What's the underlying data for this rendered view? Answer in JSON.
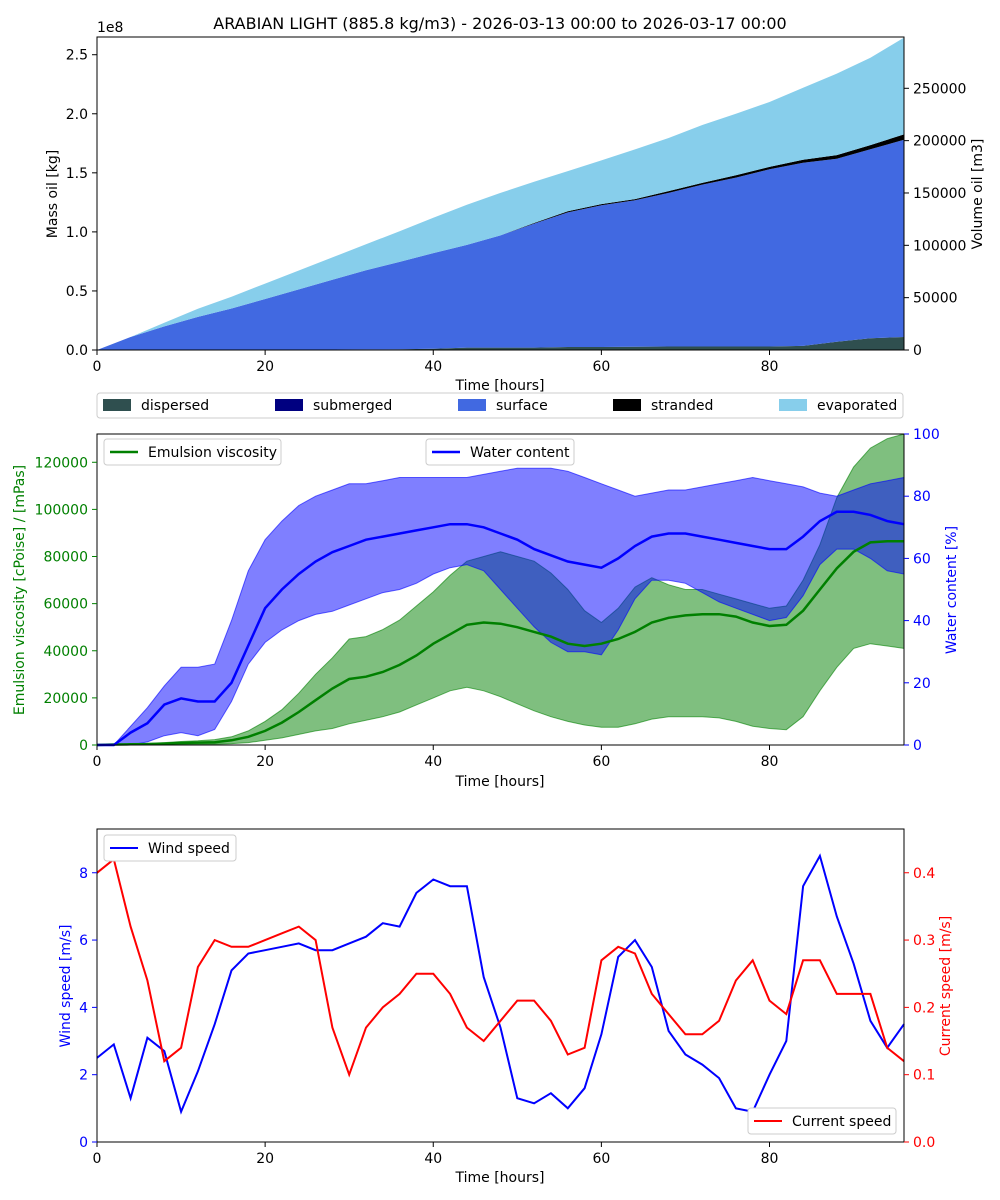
{
  "colors": {
    "dispersed": "#2f4f4f",
    "submerged": "#000080",
    "surface": "#4169e1",
    "stranded": "#000000",
    "evaporated": "#87ceeb",
    "emulsion": "#008000",
    "water": "#0000ff",
    "wind": "#0000ff",
    "current": "#ff0000"
  },
  "chart_data": [
    {
      "type": "area",
      "title": "ARABIAN LIGHT (885.8 kg/m3) - 2026-03-13 00:00 to 2026-03-17 00:00",
      "xlabel": "Time  [hours]",
      "ylabel": "Mass oil  [kg]",
      "y2label": "Volume oil [m3]",
      "y_multiplier": "1e8",
      "xlim": [
        0,
        96
      ],
      "ylim": [
        0,
        2.65
      ],
      "y2lim": [
        0,
        299000
      ],
      "x_ticks": [
        "0",
        "20",
        "40",
        "60",
        "80"
      ],
      "y_ticks": [
        "0.0",
        "0.5",
        "1.0",
        "1.5",
        "2.0",
        "2.5"
      ],
      "y2_ticks": [
        "0",
        "50000",
        "100000",
        "150000",
        "200000",
        "250000"
      ],
      "legend": [
        "dispersed",
        "submerged",
        "surface",
        "stranded",
        "evaporated"
      ],
      "x": [
        0,
        4,
        8,
        12,
        16,
        20,
        24,
        28,
        32,
        36,
        40,
        44,
        48,
        52,
        56,
        60,
        64,
        68,
        72,
        76,
        80,
        84,
        88,
        92,
        96
      ],
      "series": [
        {
          "name": "dispersed",
          "values": [
            0,
            0,
            0,
            0,
            0.001,
            0.002,
            0.003,
            0.004,
            0.005,
            0.006,
            0.01,
            0.02,
            0.02,
            0.02,
            0.025,
            0.025,
            0.028,
            0.03,
            0.03,
            0.03,
            0.03,
            0.035,
            0.07,
            0.1,
            0.11
          ]
        },
        {
          "name": "submerged",
          "values": [
            0,
            0,
            0,
            0,
            0,
            0,
            0,
            0,
            0,
            0,
            0,
            0,
            0,
            0,
            0,
            0,
            0,
            0,
            0,
            0,
            0,
            0,
            0,
            0,
            0
          ]
        },
        {
          "name": "surface",
          "values": [
            0,
            0.11,
            0.2,
            0.28,
            0.35,
            0.43,
            0.51,
            0.59,
            0.67,
            0.74,
            0.81,
            0.87,
            0.95,
            1.05,
            1.14,
            1.2,
            1.24,
            1.3,
            1.37,
            1.43,
            1.5,
            1.55,
            1.55,
            1.6,
            1.67
          ]
        },
        {
          "name": "stranded",
          "values": [
            0,
            0,
            0,
            0,
            0,
            0,
            0,
            0,
            0,
            0,
            0,
            0,
            0,
            0.005,
            0.01,
            0.01,
            0.01,
            0.015,
            0.015,
            0.02,
            0.02,
            0.025,
            0.03,
            0.035,
            0.045
          ]
        },
        {
          "name": "evaporated",
          "values": [
            0,
            0.0,
            0.03,
            0.07,
            0.1,
            0.13,
            0.16,
            0.19,
            0.22,
            0.26,
            0.3,
            0.34,
            0.36,
            0.35,
            0.34,
            0.37,
            0.42,
            0.45,
            0.49,
            0.52,
            0.55,
            0.61,
            0.69,
            0.74,
            0.82
          ]
        }
      ]
    },
    {
      "type": "line",
      "xlabel": "Time [hours]",
      "ylabel": "Emulsion viscosity  [cPoise] / [mPas]",
      "y2label": "Water content  [%]",
      "xlim": [
        0,
        96
      ],
      "ylim": [
        0,
        132000
      ],
      "y2lim": [
        0,
        100
      ],
      "x_ticks": [
        "0",
        "20",
        "40",
        "60",
        "80"
      ],
      "y_ticks": [
        "0",
        "20000",
        "40000",
        "60000",
        "80000",
        "100000",
        "120000"
      ],
      "y2_ticks": [
        "0",
        "20",
        "40",
        "60",
        "80",
        "100"
      ],
      "x": [
        0,
        2,
        4,
        6,
        8,
        10,
        12,
        14,
        16,
        18,
        20,
        22,
        24,
        26,
        28,
        30,
        32,
        34,
        36,
        38,
        40,
        42,
        44,
        46,
        48,
        50,
        52,
        54,
        56,
        58,
        60,
        62,
        64,
        66,
        68,
        70,
        72,
        74,
        76,
        78,
        80,
        82,
        84,
        86,
        88,
        90,
        92,
        94,
        96
      ],
      "series": [
        {
          "name": "Emulsion viscosity",
          "axis": "left",
          "values": [
            0,
            200,
            300,
            400,
            600,
            900,
            1000,
            1200,
            2000,
            3500,
            6000,
            9500,
            14000,
            19000,
            24000,
            28000,
            29000,
            31000,
            34000,
            38000,
            43000,
            47000,
            51000,
            52000,
            51500,
            50000,
            48000,
            46000,
            43000,
            42000,
            43000,
            45000,
            48000,
            52000,
            54000,
            55000,
            55500,
            55500,
            54500,
            52000,
            50500,
            51000,
            57000,
            66000,
            75000,
            82000,
            86000,
            86500,
            86500
          ],
          "lower": [
            0,
            0,
            0,
            0,
            100,
            200,
            300,
            400,
            600,
            1000,
            2000,
            3000,
            4500,
            6000,
            7000,
            9000,
            10500,
            12000,
            14000,
            17000,
            20000,
            23000,
            24500,
            23000,
            20500,
            17500,
            14500,
            12000,
            10000,
            8500,
            7500,
            7500,
            9000,
            11000,
            12000,
            12000,
            12000,
            11500,
            10000,
            8000,
            7000,
            6500,
            12000,
            23000,
            33000,
            41000,
            43000,
            42000,
            41000
          ],
          "upper": [
            0,
            300,
            500,
            700,
            1000,
            1500,
            1800,
            2300,
            3500,
            6000,
            10000,
            15000,
            22000,
            30000,
            37000,
            45000,
            46000,
            49000,
            53000,
            59000,
            65000,
            72000,
            78000,
            80000,
            82000,
            80000,
            78000,
            73000,
            66000,
            57000,
            52000,
            58000,
            67000,
            71000,
            68000,
            66000,
            66000,
            64000,
            62000,
            60000,
            58000,
            59000,
            70000,
            85000,
            105000,
            118000,
            126000,
            130000,
            132000
          ]
        },
        {
          "name": "Water content",
          "axis": "right",
          "values": [
            0,
            0,
            4,
            7,
            13,
            15,
            14,
            14,
            20,
            32,
            44,
            50,
            55,
            59,
            62,
            64,
            66,
            67,
            68,
            69,
            70,
            71,
            71,
            70,
            68,
            66,
            63,
            61,
            59,
            58,
            57,
            60,
            64,
            67,
            68,
            68,
            67,
            66,
            65,
            64,
            63,
            63,
            67,
            72,
            75,
            75,
            74,
            72,
            71
          ],
          "lower": [
            0,
            0,
            0,
            1,
            3,
            4,
            3,
            5,
            14,
            26,
            33,
            37,
            40,
            42,
            43,
            45,
            47,
            49,
            50,
            52,
            55,
            57,
            58,
            56,
            50,
            44,
            38,
            33,
            30,
            30,
            29,
            37,
            47,
            53,
            53,
            52,
            49,
            46,
            44,
            42,
            40,
            41,
            48,
            58,
            63,
            63,
            60,
            56,
            55
          ],
          "upper": [
            0,
            0,
            6,
            12,
            19,
            25,
            25,
            26,
            40,
            56,
            66,
            72,
            77,
            80,
            82,
            84,
            84,
            85,
            86,
            86,
            86,
            86,
            86,
            87,
            88,
            89,
            89,
            89,
            88,
            86,
            84,
            82,
            80,
            81,
            82,
            82,
            83,
            84,
            85,
            86,
            85,
            84,
            83,
            81,
            80,
            82,
            84,
            85,
            86
          ]
        }
      ]
    },
    {
      "type": "line",
      "xlabel": "Time  [hours]",
      "ylabel": "Wind speed  [m/s]",
      "y2label": "Current speed  [m/s]",
      "xlim": [
        0,
        96
      ],
      "ylim": [
        0,
        9.3
      ],
      "y2lim": [
        0,
        0.465
      ],
      "x_ticks": [
        "0",
        "20",
        "40",
        "60",
        "80"
      ],
      "y_ticks": [
        "0",
        "2",
        "4",
        "6",
        "8"
      ],
      "y2_ticks": [
        "0.0",
        "0.1",
        "0.2",
        "0.3",
        "0.4"
      ],
      "x": [
        0,
        2,
        4,
        6,
        8,
        10,
        12,
        14,
        16,
        18,
        20,
        22,
        24,
        26,
        28,
        30,
        32,
        34,
        36,
        38,
        40,
        42,
        44,
        46,
        48,
        50,
        52,
        54,
        56,
        58,
        60,
        62,
        64,
        66,
        68,
        70,
        72,
        74,
        76,
        78,
        80,
        82,
        84,
        86,
        88,
        90,
        92,
        94,
        96
      ],
      "series": [
        {
          "name": "Wind speed",
          "axis": "left",
          "values": [
            2.5,
            2.9,
            1.3,
            3.1,
            2.7,
            0.9,
            2.1,
            3.5,
            5.1,
            5.6,
            5.7,
            5.8,
            5.9,
            5.7,
            5.7,
            5.9,
            6.1,
            6.5,
            6.4,
            7.4,
            7.8,
            7.6,
            7.6,
            4.9,
            3.4,
            1.3,
            1.15,
            1.45,
            1.0,
            1.6,
            3.2,
            5.5,
            6.0,
            5.2,
            3.3,
            2.6,
            2.3,
            1.9,
            1.0,
            0.9,
            2.0,
            3.0,
            7.6,
            8.5,
            6.7,
            5.3,
            3.6,
            2.8,
            3.5
          ],
          "lower": [],
          "upper": []
        },
        {
          "name": "Current speed",
          "axis": "right",
          "values": [
            0.4,
            0.42,
            0.32,
            0.24,
            0.12,
            0.14,
            0.26,
            0.3,
            0.29,
            0.29,
            0.3,
            0.31,
            0.32,
            0.3,
            0.17,
            0.1,
            0.17,
            0.2,
            0.22,
            0.25,
            0.25,
            0.22,
            0.17,
            0.15,
            0.18,
            0.21,
            0.21,
            0.18,
            0.13,
            0.14,
            0.27,
            0.29,
            0.28,
            0.22,
            0.19,
            0.16,
            0.16,
            0.18,
            0.24,
            0.27,
            0.21,
            0.19,
            0.27,
            0.27,
            0.22,
            0.22,
            0.22,
            0.14,
            0.12
          ],
          "lower": [],
          "upper": []
        }
      ]
    }
  ],
  "legends": {
    "viscosity": "Emulsion viscosity",
    "water": "Water content",
    "wind": "Wind speed",
    "current": "Current speed"
  }
}
